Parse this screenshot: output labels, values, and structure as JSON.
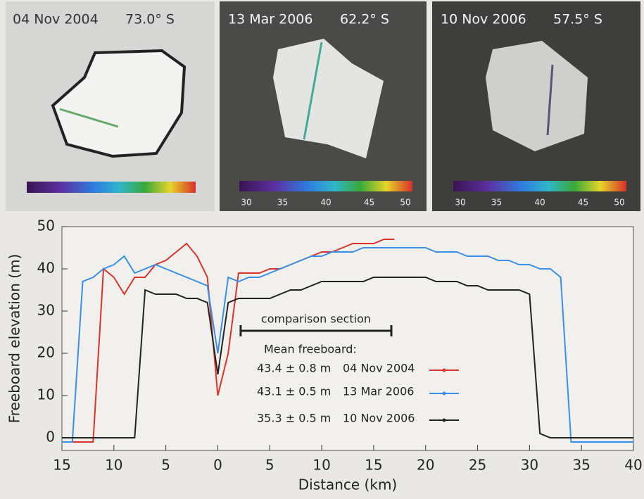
{
  "panels": [
    {
      "date": "04 Nov 2004",
      "latitude": "73.0° S"
    },
    {
      "date": "13 Mar 2006",
      "latitude": "62.2° S",
      "colorbar_lim": [
        30,
        50
      ],
      "colorbar_ticks": [
        30,
        35,
        40,
        45,
        50
      ]
    },
    {
      "date": "10 Nov 2006",
      "latitude": "57.5° S",
      "colorbar_lim": [
        30,
        50
      ],
      "colorbar_ticks": [
        30,
        35,
        40,
        45,
        50
      ]
    }
  ],
  "chart_data": {
    "type": "line",
    "xlabel": "Distance (km)",
    "ylabel": "Freeboard elevation (m)",
    "xlim": [
      -15,
      40
    ],
    "ylim": [
      -3,
      50
    ],
    "xticks": [
      {
        "value": -15,
        "label": "15"
      },
      {
        "value": -10,
        "label": "10"
      },
      {
        "value": -5,
        "label": "5"
      },
      0,
      5,
      10,
      15,
      20,
      25,
      30,
      35,
      40
    ],
    "yticks": [
      0,
      10,
      20,
      30,
      40,
      50
    ],
    "x": [
      -15,
      -14,
      -13,
      -12,
      -11,
      -10,
      -9,
      -8,
      -7,
      -6,
      -5,
      -4,
      -3,
      -2,
      -1,
      0,
      1,
      2,
      3,
      4,
      5,
      6,
      7,
      8,
      9,
      10,
      11,
      12,
      13,
      14,
      15,
      16,
      17,
      18,
      19,
      20,
      21,
      22,
      23,
      24,
      25,
      26,
      27,
      28,
      29,
      30,
      31,
      32,
      33,
      34,
      35,
      36,
      37,
      38,
      39,
      40
    ],
    "series": [
      {
        "name": "04 Nov 2004",
        "color": "#d9342b",
        "stats": "43.4 ± 0.8 m",
        "values": [
          -1,
          -1,
          -1,
          -1,
          40,
          38,
          34,
          38,
          38,
          41,
          42,
          44,
          46,
          43,
          38,
          10,
          20,
          39,
          39,
          39,
          40,
          40,
          41,
          42,
          43,
          44,
          44,
          45,
          46,
          46,
          46,
          47,
          47,
          null,
          null,
          null,
          null,
          null,
          null,
          null,
          null,
          null,
          null,
          null,
          null,
          null,
          null,
          null,
          null,
          null,
          null,
          null,
          null,
          null,
          null,
          null
        ]
      },
      {
        "name": "13 Mar 2006",
        "color": "#3a8ee6",
        "stats": "43.1 ± 0.5 m",
        "values": [
          -1,
          -1,
          37,
          38,
          40,
          41,
          43,
          39,
          40,
          41,
          40,
          39,
          38,
          37,
          36,
          20,
          38,
          37,
          38,
          38,
          39,
          40,
          41,
          42,
          43,
          43,
          44,
          44,
          44,
          45,
          45,
          45,
          45,
          45,
          45,
          45,
          44,
          44,
          44,
          43,
          43,
          43,
          42,
          42,
          41,
          41,
          40,
          40,
          38,
          -1,
          -1,
          -1,
          -1,
          -1,
          -1,
          -1
        ]
      },
      {
        "name": "10 Nov 2006",
        "color": "#222222",
        "stats": "35.3 ± 0.5 m",
        "values": [
          0,
          0,
          0,
          0,
          0,
          0,
          0,
          0,
          35,
          34,
          34,
          34,
          33,
          33,
          32,
          15,
          32,
          33,
          33,
          33,
          33,
          34,
          35,
          35,
          36,
          37,
          37,
          37,
          37,
          37,
          38,
          38,
          38,
          38,
          38,
          38,
          37,
          37,
          37,
          36,
          36,
          35,
          35,
          35,
          35,
          34,
          1,
          0,
          0,
          0,
          0,
          0,
          0,
          0,
          0,
          0
        ]
      }
    ],
    "legend_title": "Mean freeboard:",
    "annotation": {
      "label": "comparison section",
      "x": [
        2.2,
        16.7
      ]
    }
  }
}
